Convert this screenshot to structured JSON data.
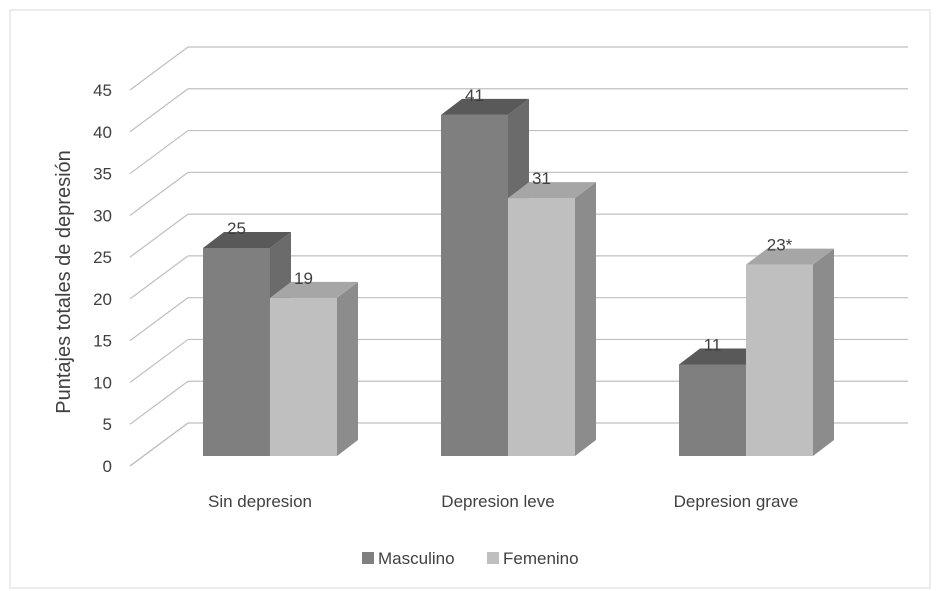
{
  "chart_data": {
    "type": "bar",
    "style": "3d-clustered-column",
    "categories": [
      "Sin depresion",
      "Depresion leve",
      "Depresion grave"
    ],
    "series": [
      {
        "name": "Masculino",
        "values": [
          25,
          41,
          11
        ],
        "labels": [
          "25",
          "41",
          "11"
        ],
        "color": "#7f7f7f",
        "top_color": "#595959",
        "side_color": "#6b6b6b"
      },
      {
        "name": "Femenino",
        "values": [
          19,
          31,
          23
        ],
        "labels": [
          "19",
          "31",
          "23*"
        ],
        "color": "#bfbfbf",
        "top_color": "#a6a6a6",
        "side_color": "#8c8c8c"
      }
    ],
    "title": "",
    "xlabel": "",
    "ylabel": "Puntajes totales de depresión",
    "ylim": [
      0,
      45
    ],
    "yticks": [
      "0",
      "5",
      "10",
      "15",
      "20",
      "25",
      "30",
      "35",
      "40",
      "45"
    ],
    "grid": true,
    "legend": "bottom",
    "colors": {
      "grid": "#bfbfbf",
      "border": "#d9d9d9",
      "text": "#404040"
    }
  }
}
